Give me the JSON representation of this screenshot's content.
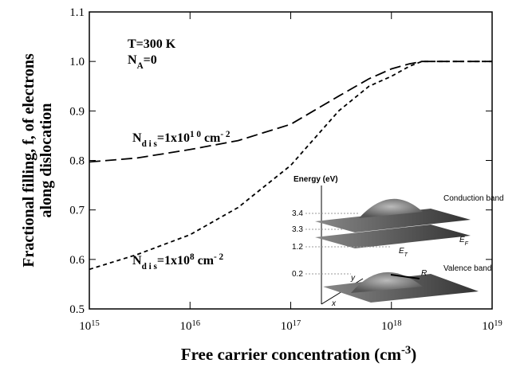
{
  "chart_data": {
    "type": "line",
    "xlabel": "Free carrier concentration (cm^{-3})",
    "ylabel": [
      "Fractional filling, f, of electrons",
      "along dislocation"
    ],
    "log_x": true,
    "xlim": [
      1000000000000000.0,
      1e+19
    ],
    "xticks": [
      {
        "value": 1000000000000000.0,
        "label": "10^{15}"
      },
      {
        "value": 1e+16,
        "label": "10^{16}"
      },
      {
        "value": 1e+17,
        "label": "10^{17}"
      },
      {
        "value": 1e+18,
        "label": "10^{18}"
      },
      {
        "value": 1e+19,
        "label": "10^{19}"
      }
    ],
    "ylim": [
      0.5,
      1.1
    ],
    "yticks": [
      0.5,
      0.6,
      0.7,
      0.8,
      0.9,
      {
        "value": 1,
        "label": "1.0"
      },
      1.1
    ],
    "annotations": [
      "T=300 K",
      "N_{A}=0"
    ],
    "x": [
      1000000000000000.0,
      3000000000000000.0,
      1e+16,
      3e+16,
      1e+17,
      3e+17,
      6e+17,
      1e+18,
      1.5e+18,
      2e+18,
      1e+19
    ],
    "series": [
      {
        "name": "N_{d i s}=1x10^{1 0} cm^{- 2}",
        "color": "#000000",
        "dash": "long",
        "values": [
          0.797,
          0.805,
          0.822,
          0.84,
          0.873,
          0.93,
          0.965,
          0.985,
          0.995,
          1.0,
          1.0
        ]
      },
      {
        "name": "N_{d i s}=1x10^{8} cm^{- 2}",
        "color": "#000000",
        "dash": "short",
        "values": [
          0.58,
          0.61,
          0.65,
          0.705,
          0.79,
          0.9,
          0.95,
          0.97,
          0.99,
          1.0,
          1.0
        ]
      }
    ],
    "inset": {
      "axis_label": "Energy (eV)",
      "levels": [
        "3.4",
        "3.3",
        "1.2",
        "0.2"
      ],
      "bands": [
        "Conduction band",
        "Valence band"
      ],
      "symbols": [
        "E_{F}",
        "E_{T}",
        "R",
        "x",
        "y"
      ]
    }
  }
}
